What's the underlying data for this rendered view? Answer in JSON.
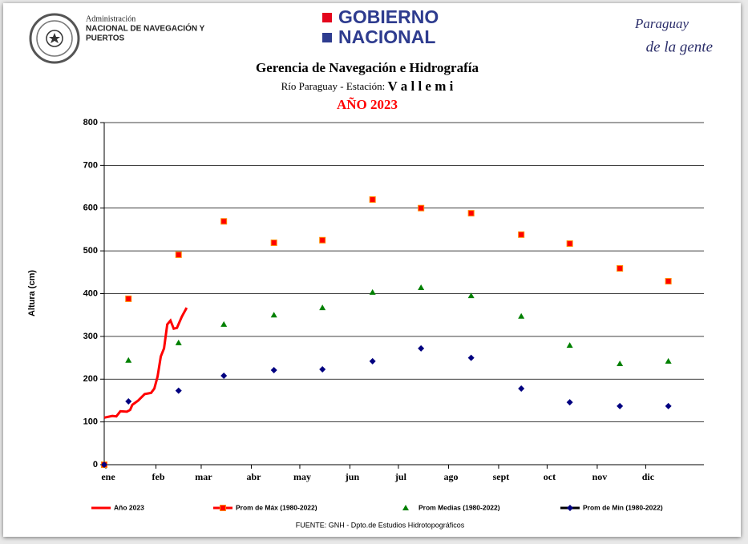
{
  "header": {
    "agency_line1": "Administración",
    "agency_line2": "NACIONAL DE NAVEGACIÓN Y",
    "agency_line3": "PUERTOS",
    "gov_line1": "GOBIERNO",
    "gov_line2": "NACIONAL",
    "slogan_line1": "Paraguay",
    "slogan_line2": "de la gente"
  },
  "chart_data": {
    "type": "line",
    "title": "Gerencia de Navegación e Hidrografía",
    "subtitle": "Río Paraguay  -  Estación: ",
    "station": "V a l l e m i",
    "year_label": "AÑO 2023",
    "y_label": "Altura (cm)",
    "source": "FUENTE:  GNH  - Dpto.de Estudios Hidrotopográficos",
    "xlim": [
      0,
      371
    ],
    "ylim": [
      0,
      800
    ],
    "xticks": [
      {
        "value": 1,
        "label": "ene"
      },
      {
        "value": 32,
        "label": "feb"
      },
      {
        "value": 60,
        "label": "mar"
      },
      {
        "value": 91,
        "label": "abr"
      },
      {
        "value": 121,
        "label": "may"
      },
      {
        "value": 152,
        "label": "jun"
      },
      {
        "value": 182,
        "label": "jul"
      },
      {
        "value": 213,
        "label": "ago"
      },
      {
        "value": 244,
        "label": "sept"
      },
      {
        "value": 274,
        "label": "oct"
      },
      {
        "value": 305,
        "label": "nov"
      },
      {
        "value": 335,
        "label": "dic"
      }
    ],
    "yticks": [
      0,
      100,
      200,
      300,
      400,
      500,
      600,
      700,
      800
    ],
    "grid": true,
    "series": [
      {
        "name": "Año 2023",
        "color": "#ff0000",
        "marker": "line",
        "x": [
          0,
          5,
          7.5,
          10,
          14,
          16,
          17.4,
          21,
          25,
          29,
          31,
          33,
          35,
          37,
          39,
          41,
          43,
          45,
          48,
          51
        ],
        "values": [
          110,
          114,
          113,
          125,
          124,
          128,
          140,
          150,
          165,
          168,
          178,
          206,
          253,
          272,
          328,
          337,
          318,
          320,
          346,
          367
        ]
      },
      {
        "name": "Prom de Máx (1980-2022)",
        "color": "#ff0000",
        "marker": "square",
        "x": [
          0,
          15,
          46,
          74,
          105,
          135,
          166,
          196,
          227,
          258,
          288,
          319,
          349
        ],
        "values": [
          0,
          388,
          491,
          569,
          519,
          525,
          620,
          600,
          588,
          538,
          517,
          459,
          429
        ]
      },
      {
        "name": "Prom Medias (1980-2022)",
        "color": "#008000",
        "marker": "triangle",
        "x": [
          15,
          46,
          74,
          105,
          135,
          166,
          196,
          227,
          258,
          288,
          319,
          349
        ],
        "values": [
          244,
          285,
          328,
          350,
          367,
          403,
          414,
          395,
          347,
          279,
          236,
          242
        ]
      },
      {
        "name": "Prom de Min  (1980-2022)",
        "color": "#000080",
        "marker": "diamond",
        "x": [
          0,
          15,
          46,
          74,
          105,
          135,
          166,
          196,
          227,
          258,
          288,
          319,
          349
        ],
        "values": [
          0,
          148,
          173,
          208,
          221,
          223,
          242,
          272,
          250,
          178,
          146,
          137,
          137
        ]
      }
    ]
  }
}
